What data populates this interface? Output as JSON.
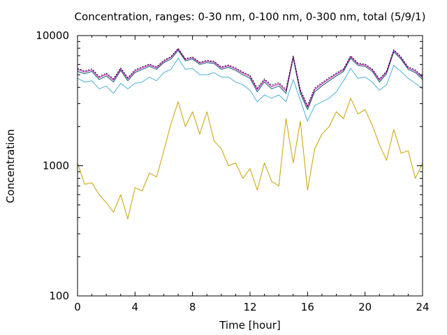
{
  "chart_data": {
    "type": "line",
    "title": "Concentration, ranges: 0-30 nm, 0-100 nm, 0-300 nm, total (5/9/1)",
    "xlabel": "Time [hour]",
    "ylabel": "Concentration",
    "xlim": [
      0,
      24
    ],
    "ylim": [
      100,
      10000
    ],
    "yscale": "log",
    "grid": false,
    "legend": "none",
    "x_ticks": [
      0,
      4,
      8,
      12,
      16,
      20,
      24
    ],
    "y_ticks": [
      100,
      1000,
      10000
    ],
    "x": [
      0,
      0.5,
      1,
      1.5,
      2,
      2.5,
      3,
      3.5,
      4,
      4.5,
      5,
      5.5,
      6,
      6.5,
      7,
      7.5,
      8,
      8.5,
      9,
      9.5,
      10,
      10.5,
      11,
      11.5,
      12,
      12.5,
      13,
      13.5,
      14,
      14.5,
      15,
      15.5,
      16,
      16.5,
      17,
      17.5,
      18,
      18.5,
      19,
      19.5,
      20,
      20.5,
      21,
      21.5,
      22,
      22.5,
      23,
      23.5,
      24
    ],
    "series": [
      {
        "color": "#c8a000",
        "values": [
          1050,
          720,
          740,
          600,
          520,
          440,
          600,
          390,
          680,
          640,
          880,
          820,
          1300,
          2100,
          3100,
          2000,
          2600,
          1750,
          2600,
          1550,
          1350,
          1000,
          1050,
          800,
          950,
          650,
          1050,
          760,
          700,
          2300,
          1050,
          2200,
          650,
          1350,
          1750,
          2000,
          2600,
          2300,
          3300,
          2500,
          2700,
          2050,
          1450,
          1100,
          1900,
          1250,
          1300,
          800,
          1050
        ]
      },
      {
        "color": "#4ab0d8",
        "values": [
          4700,
          4400,
          4500,
          3900,
          4100,
          3600,
          4300,
          3900,
          4300,
          4400,
          4800,
          4500,
          5200,
          5500,
          6700,
          5500,
          5600,
          5000,
          5000,
          5200,
          4800,
          4800,
          4400,
          4200,
          3800,
          3100,
          3500,
          3300,
          3500,
          3100,
          4600,
          3200,
          2200,
          2900,
          3100,
          3300,
          3700,
          4500,
          5600,
          4700,
          4800,
          4400,
          3800,
          4200,
          5900,
          5300,
          4700,
          4300,
          3900
        ]
      },
      {
        "color": "#0a5c60",
        "values": [
          5300,
          5100,
          5300,
          4600,
          4900,
          4400,
          5400,
          4500,
          5200,
          5500,
          5800,
          5500,
          6200,
          6600,
          7700,
          6400,
          6600,
          6000,
          6200,
          6100,
          5500,
          5700,
          5400,
          5000,
          4700,
          3700,
          4400,
          3900,
          4100,
          3600,
          6700,
          3600,
          2700,
          3700,
          4100,
          4500,
          4900,
          5300,
          6700,
          5900,
          5800,
          5300,
          4400,
          5100,
          7500,
          6600,
          5500,
          5200,
          4600
        ]
      },
      {
        "color": "#c000c0",
        "values": [
          5500,
          5250,
          5450,
          4750,
          5050,
          4550,
          5550,
          4650,
          5350,
          5650,
          5950,
          5650,
          6350,
          6800,
          7900,
          6550,
          6750,
          6150,
          6350,
          6250,
          5650,
          5850,
          5550,
          5150,
          4850,
          3850,
          4550,
          4050,
          4250,
          3750,
          6900,
          3750,
          2820,
          3850,
          4250,
          4650,
          5050,
          5450,
          6900,
          6050,
          5950,
          5450,
          4550,
          5250,
          7700,
          6750,
          5650,
          5350,
          4750
        ]
      },
      {
        "color": "#000000",
        "dashed": true,
        "values": [
          5600,
          5350,
          5550,
          4850,
          5150,
          4650,
          5650,
          4750,
          5450,
          5750,
          6050,
          5750,
          6450,
          6900,
          8000,
          6650,
          6850,
          6250,
          6450,
          6350,
          5750,
          5950,
          5650,
          5250,
          4950,
          3950,
          4650,
          4150,
          4350,
          3850,
          7000,
          3850,
          2900,
          3950,
          4350,
          4750,
          5150,
          5550,
          7000,
          6150,
          6050,
          5550,
          4650,
          5350,
          7800,
          6850,
          5750,
          5450,
          4850
        ]
      }
    ]
  }
}
